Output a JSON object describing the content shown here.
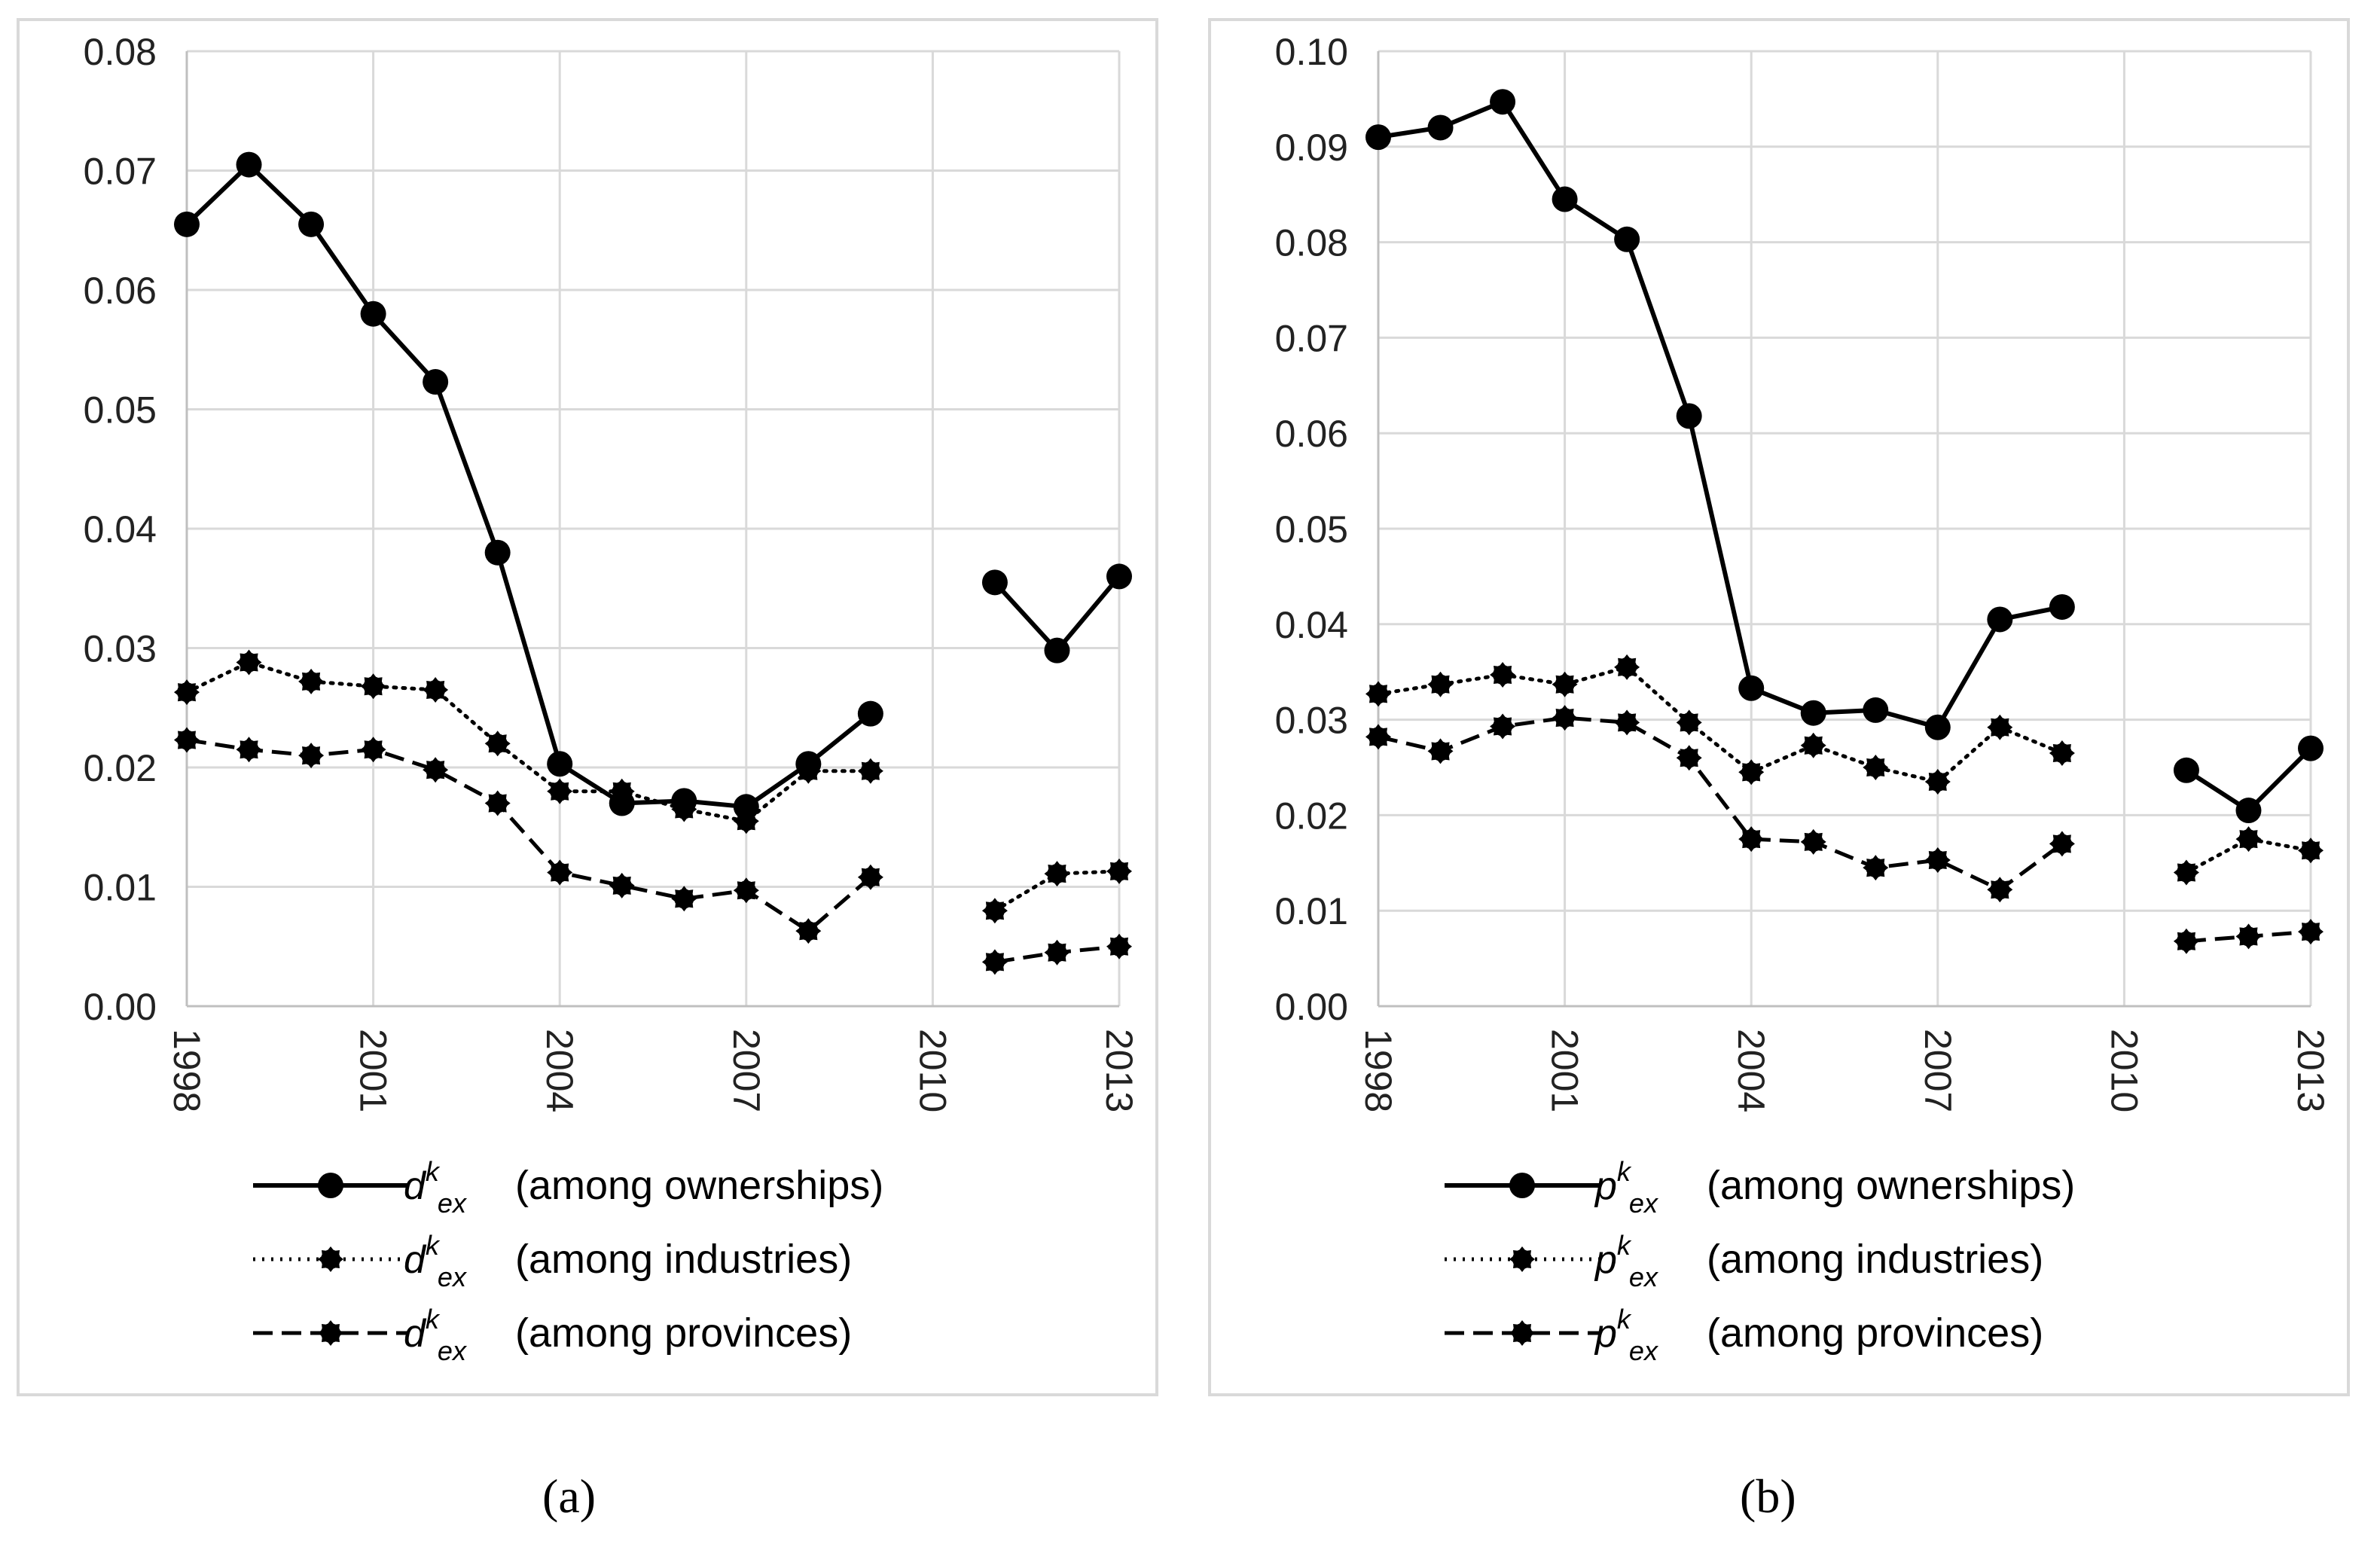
{
  "chart_data": [
    {
      "type": "line",
      "panel": "a",
      "caption": "(a)",
      "x": [
        1998,
        1999,
        2000,
        2001,
        2002,
        2003,
        2004,
        2005,
        2006,
        2007,
        2008,
        2009,
        2010,
        2011,
        2012,
        2013
      ],
      "xticks": [
        "1998",
        "2001",
        "2004",
        "2007",
        "2010",
        "2013"
      ],
      "ylim": [
        0,
        0.08
      ],
      "yticks": [
        "0.00",
        "0.01",
        "0.02",
        "0.03",
        "0.04",
        "0.05",
        "0.06",
        "0.07",
        "0.08"
      ],
      "grid": true,
      "legend_position": "bottom",
      "series": [
        {
          "name": "among ownerships",
          "symbol": "d",
          "style": "solid",
          "values": [
            0.0655,
            0.0705,
            0.0655,
            0.058,
            0.0523,
            0.038,
            0.0203,
            0.017,
            0.0172,
            0.0167,
            0.0203,
            0.0245,
            null,
            0.0355,
            0.0298,
            0.036
          ]
        },
        {
          "name": "among industries",
          "symbol": "d",
          "style": "dotted",
          "values": [
            0.0263,
            0.0288,
            0.0272,
            0.0268,
            0.0265,
            0.022,
            0.018,
            0.018,
            0.0165,
            0.0155,
            0.0197,
            0.0197,
            null,
            0.008,
            0.0111,
            0.0113
          ]
        },
        {
          "name": "among provinces",
          "symbol": "d",
          "style": "dashed",
          "values": [
            0.0223,
            0.0215,
            0.021,
            0.0215,
            0.0198,
            0.017,
            0.0112,
            0.0101,
            0.009,
            0.0097,
            0.0063,
            0.0108,
            null,
            0.0037,
            0.0045,
            0.005
          ]
        }
      ],
      "legend": [
        {
          "base": "d",
          "sup": "k",
          "sub": "ex",
          "label": "(among ownerships)"
        },
        {
          "base": "d",
          "sup": "k",
          "sub": "ex",
          "label": "(among industries)"
        },
        {
          "base": "d",
          "sup": "k",
          "sub": "ex",
          "label": "(among provinces)"
        }
      ]
    },
    {
      "type": "line",
      "panel": "b",
      "caption": "(b)",
      "x": [
        1998,
        1999,
        2000,
        2001,
        2002,
        2003,
        2004,
        2005,
        2006,
        2007,
        2008,
        2009,
        2010,
        2011,
        2012,
        2013
      ],
      "xticks": [
        "1998",
        "2001",
        "2004",
        "2007",
        "2010",
        "2013"
      ],
      "ylim": [
        0,
        0.1
      ],
      "yticks": [
        "0.00",
        "0.01",
        "0.02",
        "0.03",
        "0.04",
        "0.05",
        "0.06",
        "0.07",
        "0.08",
        "0.09",
        "0.10"
      ],
      "grid": true,
      "legend_position": "bottom",
      "series": [
        {
          "name": "among ownerships",
          "symbol": "p",
          "style": "solid",
          "values": [
            0.091,
            0.092,
            0.0947,
            0.0845,
            0.0803,
            0.0618,
            0.0333,
            0.0307,
            0.031,
            0.0292,
            0.0405,
            0.0418,
            null,
            0.0247,
            0.0205,
            0.027
          ]
        },
        {
          "name": "among industries",
          "symbol": "p",
          "style": "dotted",
          "values": [
            0.0327,
            0.0337,
            0.0347,
            0.0337,
            0.0355,
            0.0297,
            0.0245,
            0.0273,
            0.025,
            0.0235,
            0.0292,
            0.0265,
            null,
            0.014,
            0.0175,
            0.0163
          ]
        },
        {
          "name": "among provinces",
          "symbol": "p",
          "style": "dashed",
          "values": [
            0.0282,
            0.0267,
            0.0293,
            0.0302,
            0.0297,
            0.026,
            0.0175,
            0.0172,
            0.0145,
            0.0153,
            0.0122,
            0.017,
            null,
            0.0068,
            0.0073,
            0.0078
          ]
        }
      ],
      "legend": [
        {
          "base": "p",
          "sup": "k",
          "sub": "ex",
          "label": "(among ownerships)"
        },
        {
          "base": "p",
          "sup": "k",
          "sub": "ex",
          "label": "(among industries)"
        },
        {
          "base": "p",
          "sup": "k",
          "sub": "ex",
          "label": "(among provinces)"
        }
      ]
    }
  ]
}
